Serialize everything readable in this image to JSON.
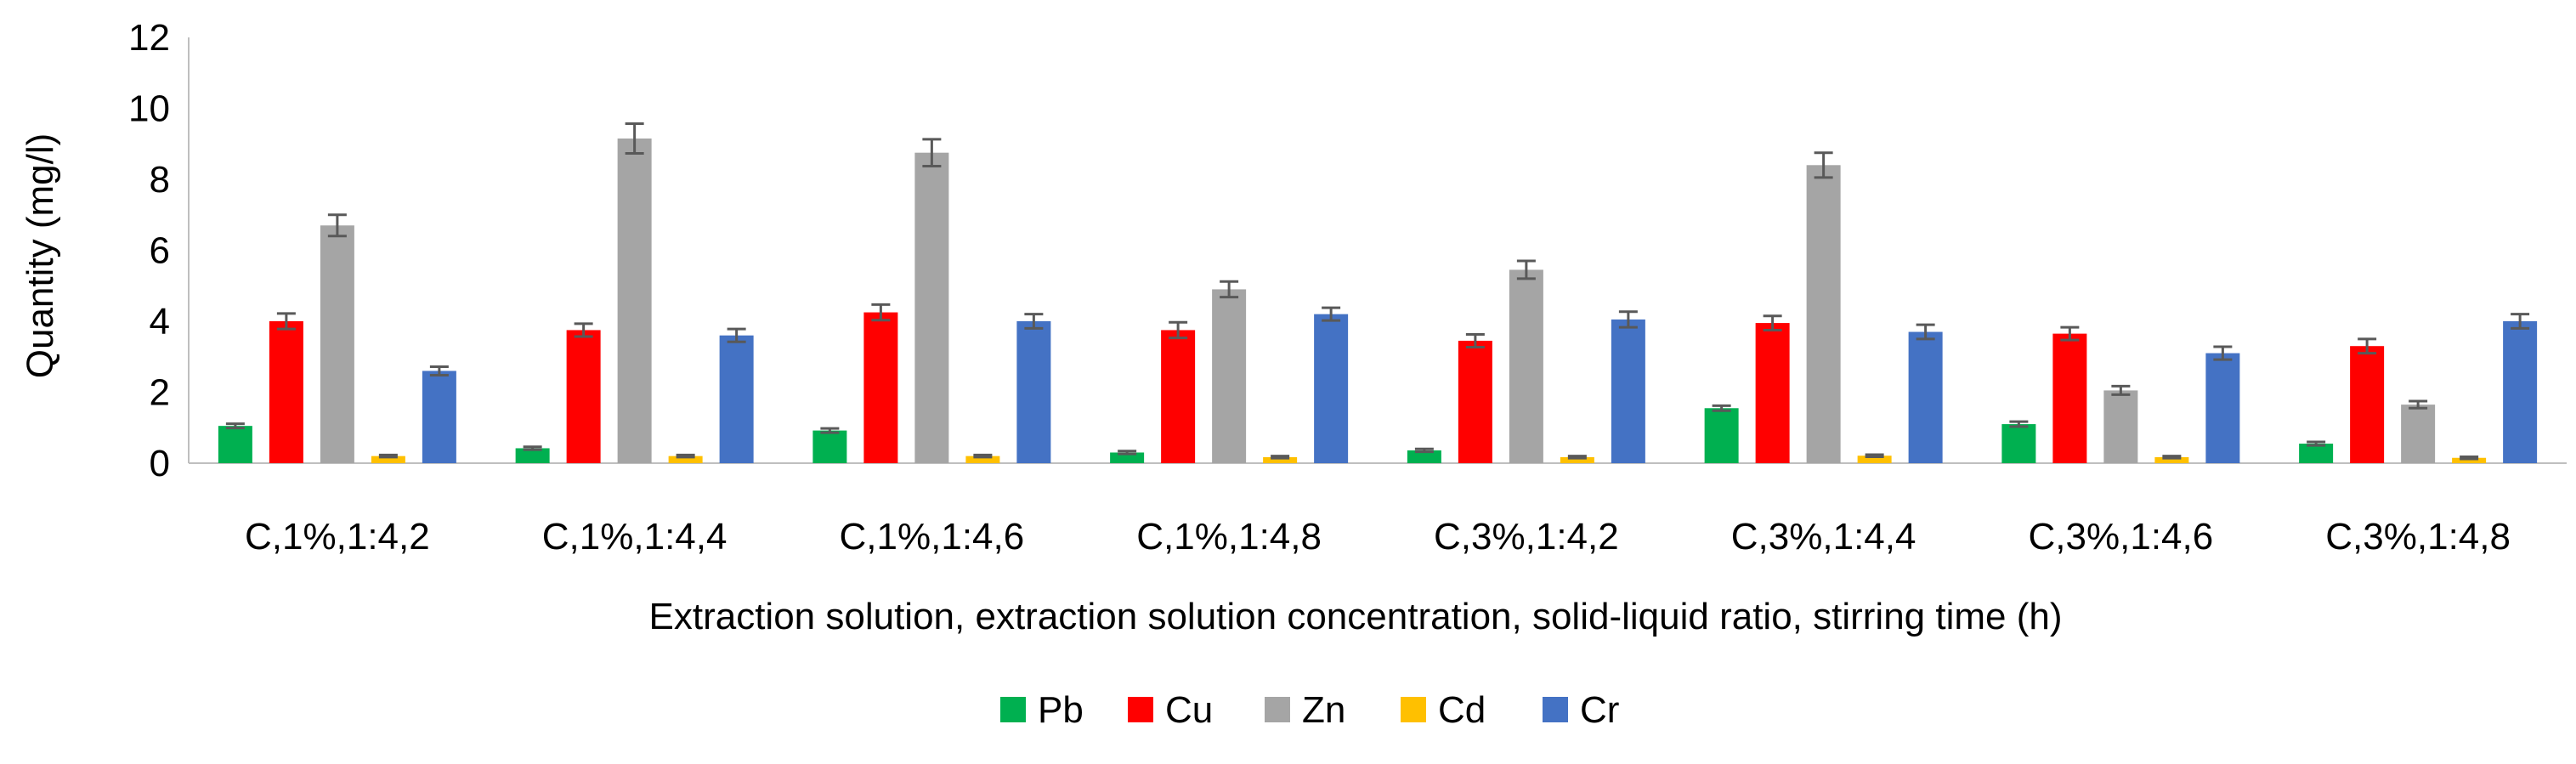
{
  "chart_data": {
    "type": "bar",
    "title": "",
    "xlabel": "Extraction solution, extraction solution concentration, solid-liquid ratio, stirring time (h)",
    "ylabel": "Quantity (mg/l)",
    "ylim": [
      0,
      12
    ],
    "yticks": [
      0,
      2,
      4,
      6,
      8,
      10,
      12
    ],
    "grid": false,
    "legend_position": "bottom",
    "categories": [
      "C,1%,1:4,2",
      "C,1%,1:4,4",
      "C,1%,1:4,6",
      "C,1%,1:4,8",
      "C,3%,1:4,2",
      "C,3%,1:4,4",
      "C,3%,1:4,6",
      "C,3%,1:4,8"
    ],
    "series": [
      {
        "name": "Pb",
        "color": "#00B050",
        "values": [
          1.05,
          0.42,
          0.92,
          0.3,
          0.36,
          1.55,
          1.1,
          0.55
        ],
        "errors": [
          0.06,
          0.04,
          0.06,
          0.04,
          0.04,
          0.07,
          0.07,
          0.05
        ]
      },
      {
        "name": "Cu",
        "color": "#FF0000",
        "values": [
          4.0,
          3.75,
          4.25,
          3.75,
          3.45,
          3.95,
          3.65,
          3.3
        ],
        "errors": [
          0.22,
          0.18,
          0.22,
          0.22,
          0.18,
          0.2,
          0.18,
          0.2
        ]
      },
      {
        "name": "Zn",
        "color": "#A5A5A5",
        "values": [
          6.7,
          9.15,
          8.75,
          4.9,
          5.45,
          8.4,
          2.05,
          1.65
        ],
        "errors": [
          0.3,
          0.42,
          0.38,
          0.22,
          0.25,
          0.35,
          0.12,
          0.1
        ]
      },
      {
        "name": "Cd",
        "color": "#FFC000",
        "values": [
          0.2,
          0.2,
          0.2,
          0.17,
          0.17,
          0.21,
          0.17,
          0.15
        ],
        "errors": [
          0.03,
          0.03,
          0.03,
          0.03,
          0.03,
          0.03,
          0.03,
          0.03
        ]
      },
      {
        "name": "Cr",
        "color": "#4472C4",
        "values": [
          2.6,
          3.6,
          4.0,
          4.2,
          4.05,
          3.7,
          3.1,
          4.0
        ],
        "errors": [
          0.12,
          0.18,
          0.2,
          0.18,
          0.22,
          0.2,
          0.18,
          0.2
        ]
      }
    ]
  }
}
